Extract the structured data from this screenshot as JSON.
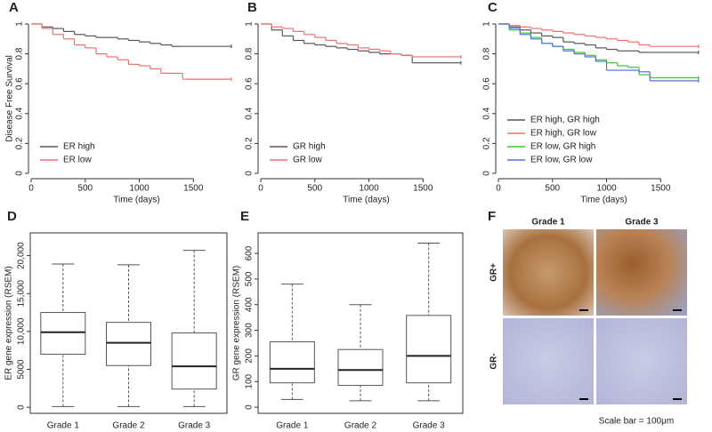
{
  "chart_data": [
    {
      "type": "survival",
      "label": "A",
      "ylabel": "Disease Free Survival",
      "xlabel": "Time (days)",
      "xlim": [
        0,
        1950
      ],
      "xticks": [
        0,
        500,
        1000,
        1500
      ],
      "ylim": [
        0,
        1
      ],
      "yticks": [
        0,
        0.2,
        0.4,
        0.6,
        0.8,
        1
      ],
      "legend": "lower left",
      "x": [
        0,
        100,
        200,
        300,
        400,
        500,
        600,
        700,
        800,
        900,
        1000,
        1100,
        1200,
        1300,
        1400,
        1850
      ],
      "series": [
        {
          "name": "ER high",
          "color": "#555555",
          "values": [
            1,
            0.98,
            0.97,
            0.95,
            0.93,
            0.92,
            0.91,
            0.91,
            0.9,
            0.89,
            0.88,
            0.87,
            0.86,
            0.85,
            0.85,
            0.85
          ]
        },
        {
          "name": "ER low",
          "color": "#f07070",
          "values": [
            1,
            0.97,
            0.93,
            0.9,
            0.86,
            0.84,
            0.8,
            0.78,
            0.76,
            0.73,
            0.72,
            0.7,
            0.67,
            0.67,
            0.63,
            0.63
          ]
        }
      ]
    },
    {
      "type": "survival",
      "label": "B",
      "xlabel": "Time (days)",
      "xlim": [
        0,
        1950
      ],
      "xticks": [
        0,
        500,
        1000,
        1500
      ],
      "ylim": [
        0,
        1
      ],
      "yticks": [
        0,
        0.2,
        0.4,
        0.6,
        0.8,
        1
      ],
      "legend": "lower left",
      "x": [
        0,
        100,
        200,
        300,
        400,
        500,
        600,
        700,
        800,
        900,
        1000,
        1100,
        1200,
        1300,
        1400,
        1850
      ],
      "series": [
        {
          "name": "GR high",
          "color": "#555555",
          "values": [
            1,
            0.96,
            0.92,
            0.89,
            0.87,
            0.86,
            0.85,
            0.84,
            0.83,
            0.82,
            0.81,
            0.8,
            0.8,
            0.79,
            0.74,
            0.74
          ]
        },
        {
          "name": "GR low",
          "color": "#f07070",
          "values": [
            1,
            0.98,
            0.97,
            0.95,
            0.93,
            0.91,
            0.89,
            0.87,
            0.86,
            0.84,
            0.83,
            0.82,
            0.8,
            0.79,
            0.78,
            0.78
          ]
        }
      ]
    },
    {
      "type": "survival",
      "label": "C",
      "xlabel": "Time (days)",
      "xlim": [
        0,
        1950
      ],
      "xticks": [
        0,
        500,
        1000,
        1500
      ],
      "ylim": [
        0,
        1
      ],
      "yticks": [
        0,
        0.2,
        0.4,
        0.6,
        0.8,
        1
      ],
      "legend": "lower left",
      "x": [
        0,
        100,
        200,
        300,
        400,
        500,
        600,
        700,
        800,
        900,
        1000,
        1100,
        1200,
        1300,
        1400,
        1850
      ],
      "series": [
        {
          "name": "ER high, GR high",
          "color": "#555555",
          "values": [
            1,
            0.98,
            0.96,
            0.94,
            0.92,
            0.91,
            0.88,
            0.87,
            0.86,
            0.84,
            0.83,
            0.82,
            0.82,
            0.81,
            0.81,
            0.81
          ]
        },
        {
          "name": "ER high, GR low",
          "color": "#f07070",
          "values": [
            1,
            0.99,
            0.98,
            0.97,
            0.96,
            0.95,
            0.94,
            0.93,
            0.92,
            0.91,
            0.9,
            0.89,
            0.88,
            0.86,
            0.85,
            0.85
          ]
        },
        {
          "name": "ER low, GR high",
          "color": "#33cc33",
          "values": [
            1,
            0.96,
            0.94,
            0.91,
            0.87,
            0.85,
            0.83,
            0.81,
            0.79,
            0.76,
            0.74,
            0.72,
            0.71,
            0.66,
            0.64,
            0.64
          ]
        },
        {
          "name": "ER low, GR low",
          "color": "#5a6fe0",
          "values": [
            1,
            0.97,
            0.93,
            0.9,
            0.87,
            0.85,
            0.82,
            0.8,
            0.78,
            0.75,
            0.69,
            0.69,
            0.69,
            0.68,
            0.62,
            0.62
          ]
        }
      ]
    },
    {
      "type": "box",
      "label": "D",
      "ylabel": "ER gene expression (RSEM)",
      "ylim": [
        -800,
        23000
      ],
      "yticks": [
        0,
        5000,
        {
          "value": 10000,
          "label": "10,000"
        },
        {
          "value": 15000,
          "label": "15,000"
        },
        {
          "value": 20000,
          "label": "20,000"
        }
      ],
      "categories": [
        "Grade 1",
        "Grade 2",
        "Grade 3"
      ],
      "min": [
        100,
        100,
        100
      ],
      "q1": [
        7000,
        5500,
        2400
      ],
      "median": [
        9900,
        8500,
        5400
      ],
      "q3": [
        12500,
        11200,
        9800
      ],
      "max": [
        18900,
        18800,
        20700
      ]
    },
    {
      "type": "box",
      "label": "E",
      "ylabel": "GR gene expression (RSEM)",
      "ylim": [
        -24,
        680
      ],
      "yticks": [
        0,
        100,
        200,
        300,
        400,
        500,
        600
      ],
      "categories": [
        "Grade 1",
        "Grade 2",
        "Grade 3"
      ],
      "min": [
        30,
        25,
        25
      ],
      "q1": [
        95,
        85,
        95
      ],
      "median": [
        150,
        145,
        200
      ],
      "q3": [
        255,
        225,
        358
      ],
      "max": [
        480,
        400,
        640
      ]
    }
  ],
  "panel_f": {
    "label": "F",
    "columns": [
      "Grade 1",
      "Grade 3"
    ],
    "rows": [
      "GR+",
      "GR-"
    ],
    "caption": "Scale bar = 100μm"
  }
}
